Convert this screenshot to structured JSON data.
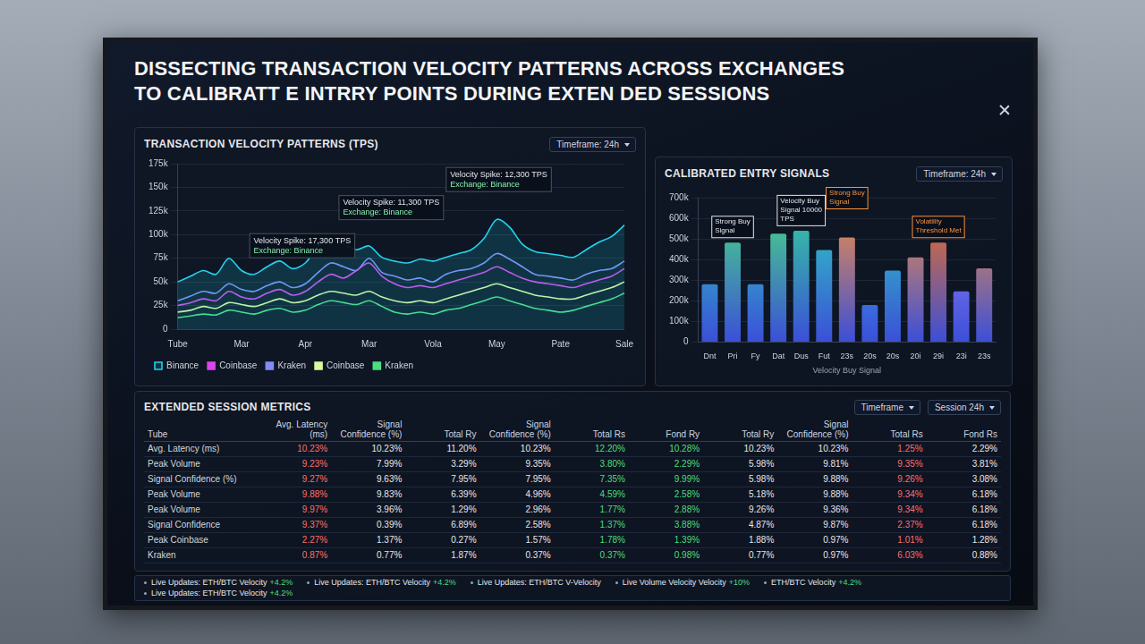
{
  "title": [
    "DISSECTING TRANSACTION VELOCITY PATTERNS ACROSS EXCHANGES",
    "TO CALIBRATT E INTRRY POINTS DURING EXTEN DED SESSIONS"
  ],
  "chart_data": [
    {
      "type": "line",
      "title": "TRANSACTION VELOCITY PATTERNS (TPS)",
      "subtitle": "Timeframe: 24h",
      "categories": [
        "Tube",
        null,
        null,
        null,
        null,
        "Mar",
        null,
        null,
        null,
        null,
        "Apr",
        null,
        null,
        null,
        null,
        "Mar",
        null,
        null,
        null,
        null,
        "Vola",
        null,
        null,
        null,
        null,
        "May",
        null,
        null,
        null,
        null,
        "Pate",
        null,
        null,
        null,
        null,
        "Sale"
      ],
      "series": [
        {
          "name": "Binance",
          "color": "#22d3ee",
          "values": [
            50000,
            56000,
            62000,
            58000,
            75000,
            62000,
            58000,
            66000,
            72000,
            64000,
            70000,
            88000,
            96000,
            90000,
            84000,
            88000,
            76000,
            72000,
            70000,
            74000,
            72000,
            76000,
            80000,
            84000,
            96000,
            116000,
            108000,
            90000,
            82000,
            80000,
            78000,
            76000,
            84000,
            92000,
            98000,
            110000
          ]
        },
        {
          "name": "Coinbase",
          "color": "#d946ef",
          "values": [
            25000,
            28000,
            32000,
            30000,
            40000,
            34000,
            32000,
            38000,
            42000,
            36000,
            40000,
            50000,
            58000,
            54000,
            62000,
            70000,
            56000,
            48000,
            44000,
            46000,
            44000,
            48000,
            52000,
            56000,
            60000,
            66000,
            60000,
            54000,
            50000,
            48000,
            46000,
            44000,
            48000,
            52000,
            56000,
            64000
          ]
        },
        {
          "name": "Kraken",
          "color": "#818cf8",
          "values": [
            30000,
            35000,
            40000,
            38000,
            48000,
            42000,
            40000,
            46000,
            50000,
            44000,
            48000,
            60000,
            70000,
            66000,
            62000,
            75000,
            60000,
            56000,
            52000,
            54000,
            50000,
            58000,
            62000,
            64000,
            70000,
            80000,
            74000,
            66000,
            58000,
            56000,
            54000,
            52000,
            58000,
            62000,
            64000,
            72000
          ]
        },
        {
          "name": "Coinbase",
          "color": "#d9f99d",
          "values": [
            18000,
            20000,
            24000,
            22000,
            28000,
            26000,
            24000,
            28000,
            32000,
            28000,
            30000,
            36000,
            40000,
            38000,
            36000,
            40000,
            34000,
            30000,
            28000,
            30000,
            28000,
            32000,
            36000,
            40000,
            44000,
            48000,
            44000,
            40000,
            36000,
            34000,
            32000,
            32000,
            36000,
            40000,
            44000,
            50000
          ]
        },
        {
          "name": "Kraken",
          "color": "#4ade80",
          "values": [
            12000,
            14000,
            16000,
            15000,
            20000,
            18000,
            16000,
            20000,
            22000,
            18000,
            20000,
            26000,
            30000,
            28000,
            26000,
            30000,
            24000,
            18000,
            16000,
            18000,
            16000,
            20000,
            22000,
            26000,
            30000,
            34000,
            30000,
            26000,
            22000,
            20000,
            18000,
            20000,
            24000,
            28000,
            32000,
            38000
          ]
        }
      ],
      "ylim": [
        0,
        175000
      ],
      "yticks": [
        0,
        {
          "value": 25000,
          "label": "25k"
        },
        {
          "value": 50000,
          "label": "50k"
        },
        {
          "value": 75000,
          "label": "75k"
        },
        {
          "value": 100000,
          "label": "100k"
        },
        {
          "value": 125000,
          "label": "125k"
        },
        {
          "value": 150000,
          "label": "150k"
        },
        {
          "value": 175000,
          "label": "175k"
        }
      ],
      "grid": true,
      "legend": "bottom left",
      "annotations": [
        {
          "text": [
            "Velocity Spike: 12,300 TPS",
            "Exchange: Binance"
          ]
        },
        {
          "text": [
            "Velocity Spike: 11,300 TPS",
            "Exchange: Binance"
          ]
        },
        {
          "text": [
            "Velocity Spike: 17,300 TPS",
            "Exchange: Binance"
          ]
        }
      ]
    },
    {
      "type": "bar",
      "title": "CALIBRATED ENTRY SIGNALS",
      "subtitle": "Timeframe: 24h",
      "categories": [
        "Dnt",
        "Pri",
        "Fy",
        "Dat",
        "Dus",
        "Fut",
        "23s",
        "20s",
        "20s",
        "20i",
        "29i",
        "23i",
        "23s"
      ],
      "values": [
        280000,
        482000,
        280000,
        525000,
        540000,
        446000,
        507000,
        180000,
        346000,
        410000,
        482000,
        246000,
        357000
      ],
      "colors": [
        "#2dd4bf",
        "#4ade80",
        "#2dd4bf",
        "#4ade80",
        "#34d399",
        "#2dd4bf",
        "#fb923c",
        "#38bdf8",
        "#2dd4bf",
        "#fb923c",
        "#f97316",
        "#a78bfa",
        "#fb923c"
      ],
      "xlabel": "Velocity Buy Signal",
      "ylim": [
        0,
        700000
      ],
      "yticks": [
        0,
        {
          "value": 100000,
          "label": "100k"
        },
        {
          "value": 200000,
          "label": "200k"
        },
        {
          "value": 300000,
          "label": "300k"
        },
        {
          "value": 400000,
          "label": "400k"
        },
        {
          "value": 500000,
          "label": "500k"
        },
        {
          "value": 600000,
          "label": "600k"
        },
        {
          "value": 700000,
          "label": "700k"
        }
      ],
      "grid": true,
      "annotations": [
        {
          "text": "Strong Buy Signal",
          "index": 1,
          "color": "#e5e7eb"
        },
        {
          "text": "Velocity Buy Signal 10000 TPS",
          "index": 4,
          "color": "#e5e7eb"
        },
        {
          "text": "Strong Buy Signal",
          "index": 6,
          "color": "#fb923c"
        },
        {
          "text": "Volatility Threshold Met",
          "index": 10,
          "color": "#fb923c"
        }
      ]
    }
  ],
  "table": {
    "title": "EXTENDED SESSION METRICS",
    "controls": [
      "Timeframe",
      "Session 24h"
    ],
    "columns": [
      "Tube",
      "Avg. Latency (ms)",
      "Signal Confidence (%)",
      "Total Ry",
      "Signal Confidence (%)",
      "Total Rs",
      "Fond Ry",
      "Total Ry",
      "Signal Confidence (%)",
      "Total Rs",
      "Fond Rs"
    ],
    "rows": [
      [
        "Avg. Latency (ms)",
        "10.23%",
        "10.23%",
        "11.20%",
        "10.23%",
        "12.20%",
        "10.28%",
        "10.23%",
        "10.23%",
        "1.25%",
        "2.29%"
      ],
      [
        "Peak Volume",
        "9.23%",
        "7.99%",
        "3.29%",
        "9.35%",
        "3.80%",
        "2.29%",
        "5.98%",
        "9.81%",
        "9.35%",
        "3.81%"
      ],
      [
        "Signal Confidence (%)",
        "9.27%",
        "9.63%",
        "7.95%",
        "7.95%",
        "7.35%",
        "9.99%",
        "5.98%",
        "9.88%",
        "9.26%",
        "3.08%"
      ],
      [
        "Peak Volume",
        "9.88%",
        "9.83%",
        "6.39%",
        "4.96%",
        "4.59%",
        "2.58%",
        "5.18%",
        "9.88%",
        "9.34%",
        "6.18%"
      ],
      [
        "Peak Volume",
        "9.97%",
        "3.96%",
        "1.29%",
        "2.96%",
        "1.77%",
        "2.88%",
        "9.26%",
        "9.36%",
        "9.34%",
        "6.18%"
      ],
      [
        "Signal Confidence",
        "9.37%",
        "0.39%",
        "6.89%",
        "2.58%",
        "1.37%",
        "3.88%",
        "4.87%",
        "9.87%",
        "2.37%",
        "6.18%"
      ],
      [
        "Peak Coinbase",
        "2.27%",
        "1.37%",
        "0.27%",
        "1.57%",
        "1.78%",
        "1.39%",
        "1.88%",
        "0.97%",
        "1.01%",
        "1.28%"
      ],
      [
        "Kraken",
        "0.87%",
        "0.77%",
        "1.87%",
        "0.37%",
        "0.37%",
        "0.98%",
        "0.77%",
        "0.97%",
        "6.03%",
        "0.88%"
      ]
    ]
  },
  "ticker": [
    {
      "text": "Live Updates: ETH/BTC Velocity",
      "change": "+4.2%"
    },
    {
      "text": "Live Updates: ETH/BTC Velocity",
      "change": "+4.2%"
    },
    {
      "text": "Live Updates: ETH/BTC V-Velocity"
    },
    {
      "text": "Live Volume Velocity Velocity",
      "change": "+10%"
    },
    {
      "text": "ETH/BTC Velocity",
      "change": "+4.2%"
    },
    {
      "text": "Live Updates: ETH/BTC Velocity",
      "change": "+4.2%"
    }
  ]
}
